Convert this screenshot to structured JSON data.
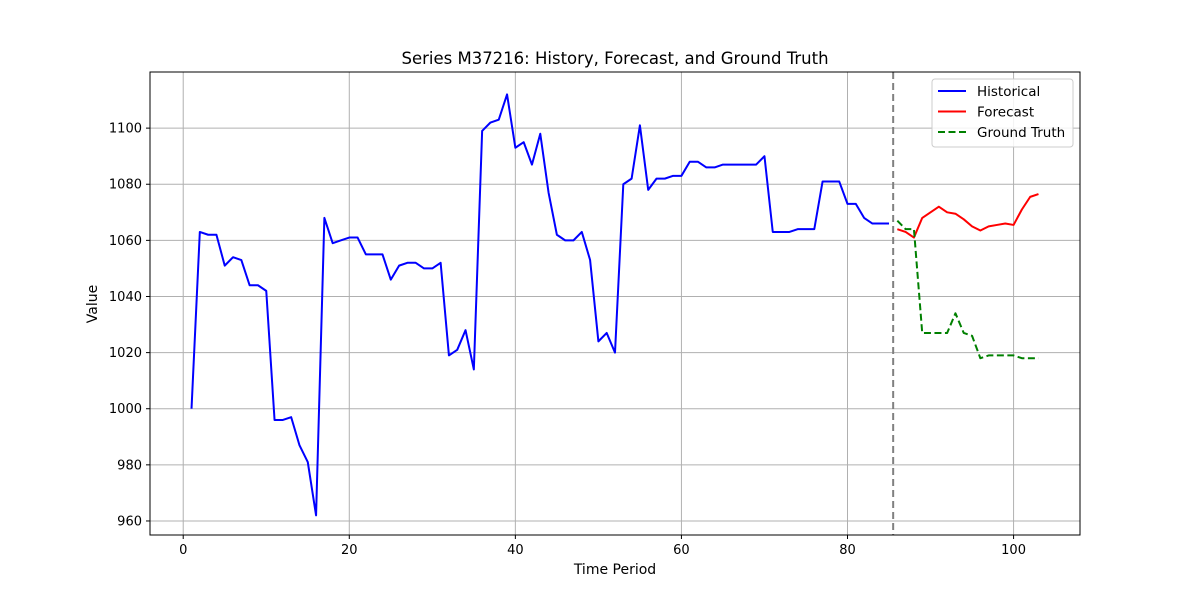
{
  "chart_data": {
    "type": "line",
    "title": "Series M37216: History, Forecast, and Ground Truth",
    "xlabel": "Time Period",
    "ylabel": "Value",
    "xlim": [
      -4,
      108
    ],
    "ylim": [
      955,
      1120
    ],
    "xticks": [
      0,
      20,
      40,
      60,
      80,
      100
    ],
    "yticks": [
      960,
      980,
      1000,
      1020,
      1040,
      1060,
      1080,
      1100
    ],
    "grid": true,
    "legend_position": "top-right",
    "forecast_start_marker": 85.5,
    "series": [
      {
        "name": "Historical",
        "color": "#0000ff",
        "style": "solid",
        "x": [
          1,
          2,
          3,
          4,
          5,
          6,
          7,
          8,
          9,
          10,
          11,
          12,
          13,
          14,
          15,
          16,
          17,
          18,
          19,
          20,
          21,
          22,
          23,
          24,
          25,
          26,
          27,
          28,
          29,
          30,
          31,
          32,
          33,
          34,
          35,
          36,
          37,
          38,
          39,
          40,
          41,
          42,
          43,
          44,
          45,
          46,
          47,
          48,
          49,
          50,
          51,
          52,
          53,
          54,
          55,
          56,
          57,
          58,
          59,
          60,
          61,
          62,
          63,
          64,
          65,
          66,
          67,
          68,
          69,
          70,
          71,
          72,
          73,
          74,
          75,
          76,
          77,
          78,
          79,
          80,
          81,
          82,
          83,
          84,
          85
        ],
        "y": [
          1000,
          1063,
          1062,
          1062,
          1051,
          1054,
          1053,
          1044,
          1044,
          1042,
          996,
          996,
          997,
          987,
          981,
          962,
          1068,
          1059,
          1060,
          1061,
          1061,
          1055,
          1055,
          1055,
          1046,
          1051,
          1052,
          1052,
          1050,
          1050,
          1052,
          1019,
          1021,
          1028,
          1014,
          1099,
          1102,
          1103,
          1112,
          1093,
          1095,
          1087,
          1098,
          1077,
          1062,
          1060,
          1060,
          1063,
          1053,
          1024,
          1027,
          1020,
          1080,
          1082,
          1101,
          1078,
          1082,
          1082,
          1083,
          1083,
          1088,
          1088,
          1086,
          1086,
          1087,
          1087,
          1087,
          1087,
          1087,
          1090,
          1063,
          1063,
          1063,
          1064,
          1064,
          1064,
          1081,
          1081,
          1081,
          1073,
          1073,
          1068,
          1066,
          1066,
          1066
        ]
      },
      {
        "name": "Forecast",
        "color": "#ff0000",
        "style": "solid",
        "x": [
          86,
          87,
          88,
          89,
          90,
          91,
          92,
          93,
          94,
          95,
          96,
          97,
          98,
          99,
          100,
          101,
          102,
          103
        ],
        "y": [
          1064,
          1063,
          1061,
          1068,
          1070,
          1072,
          1070,
          1069.5,
          1067.5,
          1065,
          1063.5,
          1065,
          1065.5,
          1066,
          1065.5,
          1071,
          1075.5,
          1076.5
        ]
      },
      {
        "name": "Ground Truth",
        "color": "#008000",
        "style": "dashed",
        "x": [
          86,
          87,
          88,
          89,
          90,
          91,
          92,
          93,
          94,
          95,
          96,
          97,
          98,
          99,
          100,
          101,
          102,
          103
        ],
        "y": [
          1067,
          1064,
          1064,
          1027,
          1027,
          1027,
          1027,
          1034,
          1027,
          1026,
          1018,
          1019,
          1019,
          1019,
          1019,
          1018,
          1018,
          1018
        ]
      }
    ]
  }
}
